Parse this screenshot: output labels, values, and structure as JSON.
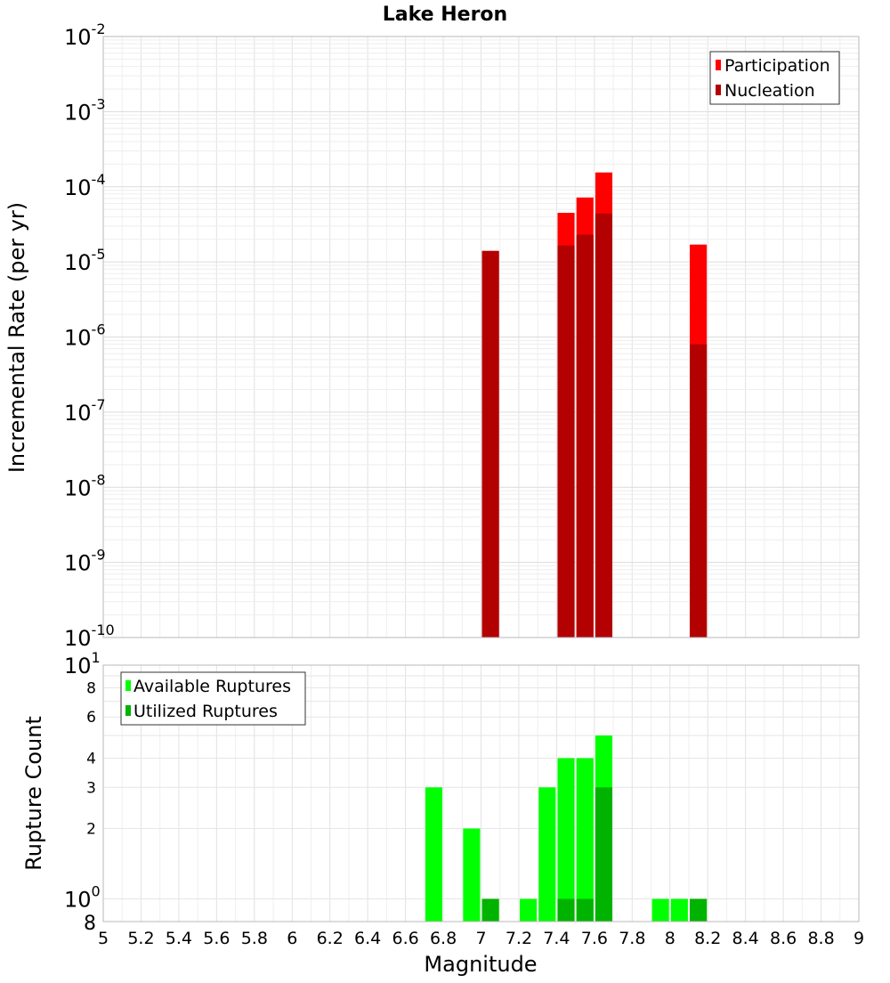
{
  "chart_data": [
    {
      "type": "bar",
      "title": "Lake Heron",
      "xlabel": "",
      "ylabel": "Incremental Rate (per yr)",
      "xlim": [
        5,
        9
      ],
      "ylim": [
        1e-10,
        0.01
      ],
      "yscale": "log",
      "grid": true,
      "legend_position": "top-right",
      "y_tick_exponents": [
        "-10",
        "-9",
        "-8",
        "-7",
        "-6",
        "-5",
        "-4",
        "-3",
        "-2"
      ],
      "y_tick_base": "10",
      "bar_width": 0.09,
      "series": [
        {
          "name": "Participation",
          "color": "#ff0000",
          "points": [
            [
              7.05,
              1.4e-05
            ],
            [
              7.45,
              4.5e-05
            ],
            [
              7.55,
              7.2e-05
            ],
            [
              7.65,
              0.000155
            ],
            [
              8.15,
              1.7e-05
            ]
          ]
        },
        {
          "name": "Nucleation",
          "color": "#b30000",
          "points": [
            [
              7.05,
              1.4e-05
            ],
            [
              7.45,
              1.65e-05
            ],
            [
              7.55,
              2.3e-05
            ],
            [
              7.65,
              4.4e-05
            ],
            [
              8.15,
              8e-07
            ]
          ]
        }
      ]
    },
    {
      "type": "bar",
      "title": "",
      "xlabel": "Magnitude",
      "ylabel": "Rupture Count",
      "xlim": [
        5,
        9
      ],
      "ylim": [
        0.8,
        10
      ],
      "yscale": "log",
      "grid": true,
      "legend_position": "top-left",
      "x_tick_labels": [
        "5",
        "5.2",
        "5.4",
        "5.6",
        "5.8",
        "6",
        "6.2",
        "6.4",
        "6.6",
        "6.8",
        "7",
        "7.2",
        "7.4",
        "7.6",
        "7.8",
        "8",
        "8.2",
        "8.4",
        "8.6",
        "8.8",
        "9"
      ],
      "y_minor_tick_labels": [
        {
          "value": 2,
          "label": "2"
        },
        {
          "value": 3,
          "label": "3"
        },
        {
          "value": 4,
          "label": "4"
        },
        {
          "value": 6,
          "label": "6"
        },
        {
          "value": 8,
          "label": "8"
        }
      ],
      "y_major_ticks": [
        {
          "value": 1,
          "base": "10",
          "exp": "0"
        },
        {
          "value": 10,
          "base": "10",
          "exp": "1"
        }
      ],
      "y_bottom_label": "8",
      "bar_width": 0.09,
      "series": [
        {
          "name": "Available Ruptures",
          "color": "#00ff00",
          "points": [
            [
              6.75,
              3
            ],
            [
              6.95,
              2
            ],
            [
              7.05,
              1
            ],
            [
              7.25,
              1
            ],
            [
              7.35,
              3
            ],
            [
              7.45,
              4
            ],
            [
              7.55,
              4
            ],
            [
              7.65,
              5
            ],
            [
              7.95,
              1
            ],
            [
              8.05,
              1
            ],
            [
              8.15,
              1
            ]
          ]
        },
        {
          "name": "Utilized Ruptures",
          "color": "#00b300",
          "points": [
            [
              7.05,
              1
            ],
            [
              7.45,
              1
            ],
            [
              7.55,
              1
            ],
            [
              7.65,
              3
            ],
            [
              8.15,
              1
            ]
          ]
        }
      ]
    }
  ]
}
